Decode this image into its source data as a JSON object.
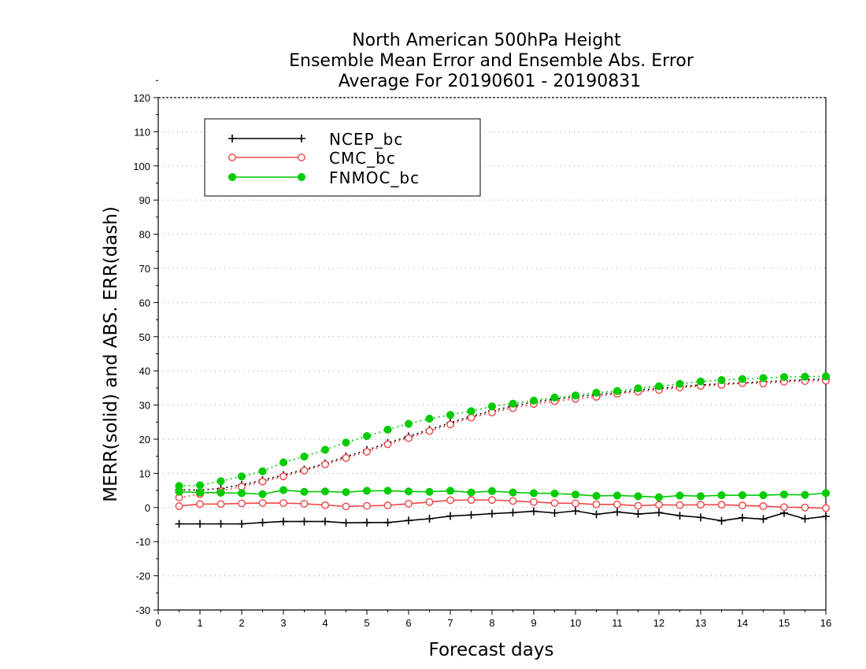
{
  "chart_data": {
    "type": "line",
    "title_lines": [
      "North American 500hPa Height",
      "Ensemble Mean Error and Ensemble Abs. Error",
      "Average For 20190601 - 20190831"
    ],
    "xlabel": "Forecast days",
    "ylabel": "MERR(solid) and ABS. ERR(dash)",
    "xlim": [
      0,
      16
    ],
    "ylim": [
      -30,
      120
    ],
    "x_ticks": [
      0,
      1,
      2,
      3,
      4,
      5,
      6,
      7,
      8,
      9,
      10,
      11,
      12,
      13,
      14,
      15,
      16
    ],
    "y_ticks": [
      -30,
      -20,
      -10,
      0,
      10,
      20,
      30,
      40,
      50,
      60,
      70,
      80,
      90,
      100,
      110,
      120
    ],
    "grid": "horizontal dotted",
    "legend_position": "top-left",
    "x": [
      0.5,
      1,
      1.5,
      2,
      2.5,
      3,
      3.5,
      4,
      4.5,
      5,
      5.5,
      6,
      6.5,
      7,
      7.5,
      8,
      8.5,
      9,
      9.5,
      10,
      10.5,
      11,
      11.5,
      12,
      12.5,
      13,
      13.5,
      14,
      14.5,
      15,
      15.5,
      16
    ],
    "series": [
      {
        "name": "NCEP_bc",
        "color": "#000000",
        "marker": "plus",
        "merr": [
          -4.8,
          -4.8,
          -4.8,
          -4.8,
          -4.4,
          -4.1,
          -4.1,
          -4.1,
          -4.5,
          -4.4,
          -4.4,
          -3.8,
          -3.3,
          -2.5,
          -2.2,
          -1.8,
          -1.5,
          -1.1,
          -1.6,
          -1.0,
          -2.0,
          -1.3,
          -1.9,
          -1.5,
          -2.4,
          -2.9,
          -3.9,
          -3.0,
          -3.4,
          -1.6,
          -3.3,
          -2.6
        ],
        "abs_err": [
          5.2,
          5.1,
          5.6,
          6.6,
          8.0,
          9.5,
          11.1,
          12.9,
          14.9,
          16.8,
          18.9,
          20.8,
          22.8,
          24.8,
          26.7,
          28.3,
          29.7,
          30.9,
          31.7,
          32.4,
          33.0,
          33.6,
          34.3,
          34.9,
          35.4,
          35.9,
          36.2,
          36.5,
          36.8,
          37.1,
          37.4,
          37.6
        ]
      },
      {
        "name": "CMC_bc",
        "color": "#ee4444",
        "marker": "open-circle",
        "merr": [
          0.4,
          1.0,
          1.0,
          1.2,
          1.3,
          1.3,
          1.1,
          0.7,
          0.3,
          0.5,
          0.6,
          1.1,
          1.6,
          2.1,
          2.2,
          2.2,
          1.9,
          1.6,
          1.3,
          1.2,
          0.9,
          0.9,
          0.5,
          0.8,
          0.7,
          0.8,
          0.8,
          0.6,
          0.4,
          0.1,
          0.0,
          -0.2
        ],
        "abs_err": [
          2.9,
          3.9,
          4.8,
          6.1,
          7.6,
          9.1,
          10.8,
          12.6,
          14.5,
          16.3,
          18.5,
          20.3,
          22.4,
          24.3,
          26.3,
          27.8,
          29.1,
          30.3,
          31.1,
          31.8,
          32.4,
          33.3,
          33.9,
          34.4,
          35.1,
          35.6,
          35.9,
          36.4,
          36.3,
          36.8,
          37.0,
          37.1
        ]
      },
      {
        "name": "FNMOC_bc",
        "color": "#00cc00",
        "marker": "filled-circle",
        "merr": [
          4.6,
          4.4,
          4.3,
          4.2,
          3.9,
          5.1,
          4.6,
          4.7,
          4.5,
          4.9,
          4.9,
          4.7,
          4.6,
          4.9,
          4.4,
          4.8,
          4.4,
          4.2,
          4.1,
          3.8,
          3.4,
          3.5,
          3.3,
          3.0,
          3.5,
          3.3,
          3.6,
          3.6,
          3.6,
          3.8,
          3.7,
          4.2
        ],
        "abs_err": [
          6.3,
          6.5,
          7.7,
          9.1,
          10.6,
          13.2,
          14.9,
          16.9,
          19.0,
          20.9,
          22.8,
          24.5,
          26.0,
          27.1,
          28.2,
          29.6,
          30.4,
          31.3,
          32.2,
          32.8,
          33.6,
          34.1,
          34.9,
          35.5,
          36.2,
          36.9,
          37.3,
          37.6,
          37.9,
          38.2,
          38.3,
          38.4
        ]
      }
    ]
  }
}
